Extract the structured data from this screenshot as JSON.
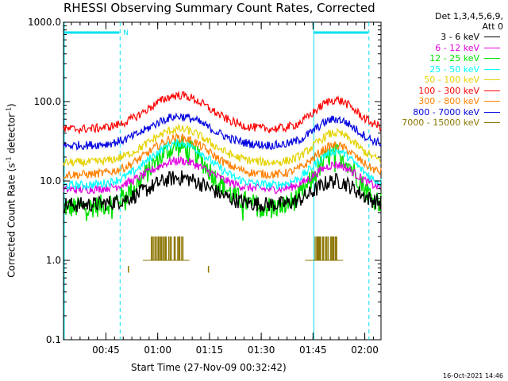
{
  "chart_data": {
    "type": "line",
    "title": "RHESSI Observing Summary Count Rates, Corrected",
    "ylabel": "Corrected Count Rate (s-1 detector-1)",
    "xlabel": "Start Time (27-Nov-09 00:32:42)",
    "yscale": "log",
    "ylim": [
      0.1,
      1000
    ],
    "yticks": [
      0.1,
      1.0,
      10.0,
      100.0,
      1000.0
    ],
    "ytick_labels": [
      "0.1",
      "1.0",
      "10.0",
      "100.0",
      "1000.0"
    ],
    "xlim_minutes": [
      0,
      92
    ],
    "xticks": [
      {
        "label": "00:45",
        "minute": 12.3
      },
      {
        "label": "01:00",
        "minute": 27.3
      },
      {
        "label": "01:15",
        "minute": 42.3
      },
      {
        "label": "01:30",
        "minute": 57.3
      },
      {
        "label": "01:45",
        "minute": 72.3
      },
      {
        "label": "02:00",
        "minute": 87.3
      }
    ],
    "detector_info": "Det 1,3,4,5,6,9, Att 0",
    "night_intervals": [
      [
        0,
        16.4
      ],
      [
        72.3,
        88.5
      ]
    ],
    "night_marker": "N",
    "humps": [
      {
        "center": 33.5,
        "width": 12.5
      },
      {
        "center": 78.8,
        "width": 8.5
      }
    ],
    "series": [
      {
        "name": "3 - 6 keV",
        "color": "#000000",
        "base": 5.0,
        "peak": 11.0,
        "peak2": 10.0
      },
      {
        "name": "6 - 12 keV",
        "color": "#e000e0",
        "base": 7.8,
        "peak": 18.0,
        "peak2": 16.0
      },
      {
        "name": "12 - 25 keV",
        "color": "#00e000",
        "base": 4.6,
        "peak": 27.0,
        "peak2": 22.0
      },
      {
        "name": "25 - 50 keV",
        "color": "#00ffff",
        "base": 8.8,
        "peak": 30.0,
        "peak2": 24.0
      },
      {
        "name": "50 - 100 keV",
        "color": "#e6d200",
        "base": 17.0,
        "peak": 45.0,
        "peak2": 40.0
      },
      {
        "name": "100 - 300 keV",
        "color": "#ff0000",
        "base": 45.0,
        "peak": 120.0,
        "peak2": 105.0
      },
      {
        "name": "300 - 800 keV",
        "color": "#ff8000",
        "base": 12.0,
        "peak": 35.0,
        "peak2": 28.0
      },
      {
        "name": "800 - 7000 keV",
        "color": "#0000e0",
        "base": 28.0,
        "peak": 65.0,
        "peak2": 60.0
      },
      {
        "name": "7000 - 15000 keV",
        "color": "#8b7500",
        "base": 1.0,
        "peak": 2.0,
        "peak2": 2.0
      }
    ],
    "olive_segments": [
      {
        "from": 23.0,
        "to": 36.5,
        "level": 1.0,
        "spike": 2.0
      },
      {
        "from": 70.0,
        "to": 81.0,
        "level": 1.0,
        "spike": 2.0
      }
    ],
    "olive_ticks": [
      {
        "minute": 18.8,
        "low": 0.7,
        "high": 0.85
      },
      {
        "minute": 42.0,
        "low": 0.7,
        "high": 0.85
      }
    ]
  },
  "legend_title_lines": [
    "Det 1,3,4,5,6,9,",
    "Att 0"
  ],
  "footer": {
    "timestamp": "16-Oct-2021 14:46"
  }
}
